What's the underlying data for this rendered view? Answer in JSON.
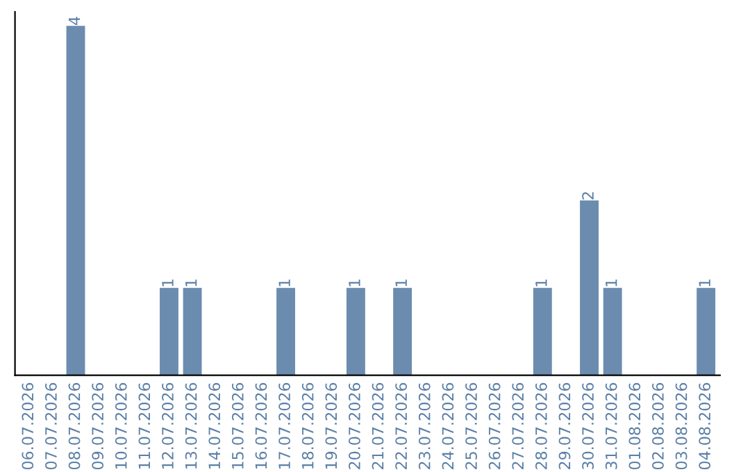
{
  "chart_data": {
    "type": "bar",
    "categories": [
      "06.07.2026",
      "07.07.2026",
      "08.07.2026",
      "09.07.2026",
      "10.07.2026",
      "11.07.2026",
      "12.07.2026",
      "13.07.2026",
      "14.07.2026",
      "15.07.2026",
      "16.07.2026",
      "17.07.2026",
      "18.07.2026",
      "19.07.2026",
      "20.07.2026",
      "21.07.2026",
      "22.07.2026",
      "23.07.2026",
      "24.07.2026",
      "25.07.2026",
      "26.07.2026",
      "27.07.2026",
      "28.07.2026",
      "29.07.2026",
      "30.07.2026",
      "31.07.2026",
      "01.08.2026",
      "02.08.2026",
      "03.08.2026",
      "04.08.2026"
    ],
    "values": [
      0,
      0,
      4,
      0,
      0,
      0,
      1,
      1,
      0,
      0,
      0,
      1,
      0,
      0,
      1,
      0,
      1,
      0,
      0,
      0,
      0,
      0,
      1,
      0,
      2,
      1,
      0,
      0,
      0,
      1
    ],
    "value_labels": [
      null,
      null,
      "4",
      null,
      null,
      null,
      "1",
      "1",
      null,
      null,
      null,
      "1",
      null,
      null,
      "1",
      null,
      "1",
      null,
      null,
      null,
      null,
      null,
      "1",
      null,
      "2",
      "1",
      null,
      null,
      null,
      "1"
    ],
    "color": "#6b8cae",
    "tick_labels": "x",
    "grid": false,
    "legend": false
  }
}
